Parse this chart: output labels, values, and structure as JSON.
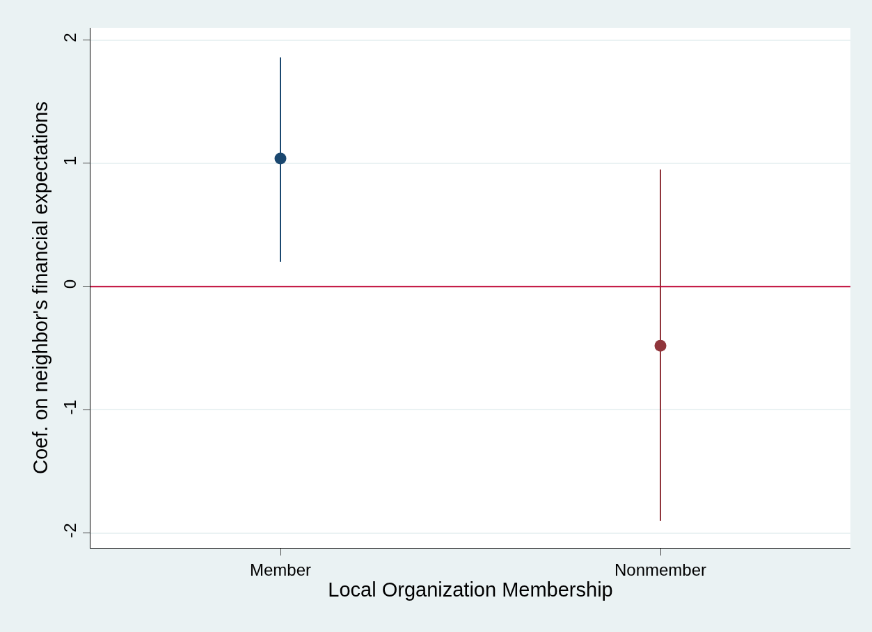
{
  "chart_data": {
    "type": "scatter",
    "xlabel": "Local Organization Membership",
    "ylabel": "Coef. on neighbor's financial expectations",
    "categories": [
      "Member",
      "Nonmember"
    ],
    "values": [
      1.04,
      -0.48
    ],
    "errors": [
      [
        0.2,
        1.86
      ],
      [
        -1.9,
        0.95
      ]
    ],
    "colors": [
      "#1a476f",
      "#90353b"
    ],
    "ylim": [
      -2.12,
      2.1
    ],
    "yticks": [
      -2,
      -1,
      0,
      1,
      2
    ],
    "ref_lines": [
      {
        "axis": "y",
        "value": 0,
        "color": "#c10534"
      }
    ],
    "grid": "y",
    "marker": "circle",
    "legend": false
  }
}
